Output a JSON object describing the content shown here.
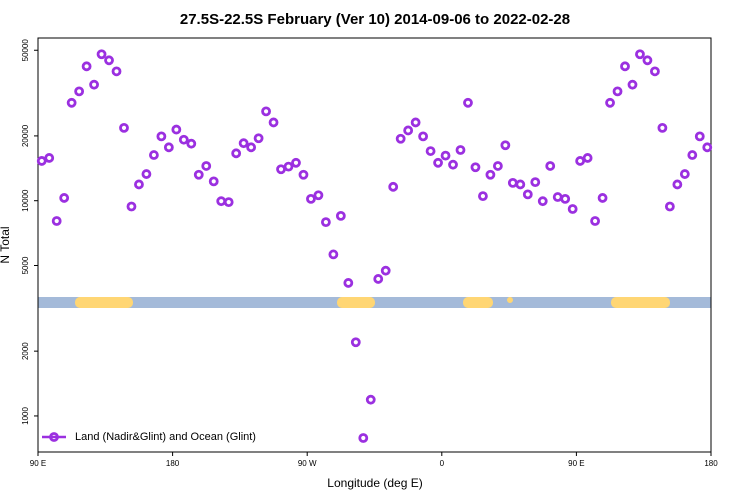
{
  "chart_data": {
    "type": "scatter",
    "title": "27.5S-22.5S February (Ver 10)   2014-09-06 to 2022-02-28",
    "x_label": "Longitude (deg E)",
    "y_label": "N Total",
    "log_y": true,
    "legend": "lower left",
    "xlim": [
      90,
      540
    ],
    "xticks": [
      {
        "value": 90,
        "label": "90 E"
      },
      {
        "value": 180,
        "label": "180"
      },
      {
        "value": 270,
        "label": "90 W"
      },
      {
        "value": 360,
        "label": "0"
      },
      {
        "value": 450,
        "label": "90 E"
      },
      {
        "value": 540,
        "label": "180"
      }
    ],
    "ylim": [
      680,
      57000
    ],
    "yticks": [
      1000,
      2000,
      5000,
      10000,
      20000,
      50000
    ],
    "series": [
      {
        "name": "Land (Nadir&Glint) and Ocean (Glint)",
        "color": "#9b30e0",
        "x": [
          92.5,
          97.5,
          102.5,
          107.5,
          112.5,
          117.5,
          122.5,
          127.5,
          132.5,
          137.5,
          142.5,
          147.5,
          152.5,
          157.5,
          162.5,
          167.5,
          172.5,
          177.5,
          182.5,
          187.5,
          192.5,
          197.5,
          202.5,
          207.5,
          212.5,
          217.5,
          222.5,
          227.5,
          232.5,
          237.5,
          242.5,
          247.5,
          252.5,
          257.5,
          262.5,
          267.5,
          272.5,
          277.5,
          282.5,
          287.5,
          292.5,
          297.5,
          302.5,
          307.5,
          312.5,
          317.5,
          322.5,
          327.5,
          332.5,
          337.5,
          342.5,
          347.5,
          352.5,
          357.5,
          362.5,
          367.5,
          372.5,
          377.5,
          382.5,
          387.5,
          392.5,
          397.5,
          402.5,
          407.5,
          412.5,
          417.5,
          422.5,
          427.5,
          432.5,
          437.5,
          442.5,
          447.5,
          452.5,
          457.5,
          462.5,
          467.5,
          472.5,
          477.5,
          482.5,
          487.5,
          492.5,
          497.5,
          502.5,
          507.5,
          512.5,
          517.5,
          522.5,
          527.5,
          532.5,
          537.5
        ],
        "values": [
          15300,
          15800,
          8050,
          10300,
          28500,
          32200,
          42100,
          34600,
          47900,
          44900,
          39900,
          21800,
          9400,
          11900,
          13300,
          16300,
          19900,
          17700,
          21400,
          19200,
          18400,
          13200,
          14500,
          12300,
          9950,
          9850,
          16600,
          18500,
          17700,
          19500,
          26000,
          23100,
          14000,
          14400,
          15000,
          13200,
          10200,
          10600,
          7950,
          5630,
          8500,
          4150,
          2200,
          790,
          1190,
          4330,
          4730,
          11600,
          19400,
          21200,
          23100,
          19900,
          17000,
          15000,
          16200,
          14700,
          17200,
          28500,
          14300,
          10500,
          13200,
          14500,
          18100,
          12100,
          11900,
          10700,
          12200,
          9950,
          14500,
          10400,
          10200,
          9150,
          15300,
          15800,
          8050,
          10300,
          28500,
          32200,
          42100,
          34600,
          47900,
          44900,
          39900,
          21800,
          9400,
          11900,
          13300,
          16300,
          19900,
          17700
        ]
      }
    ]
  }
}
